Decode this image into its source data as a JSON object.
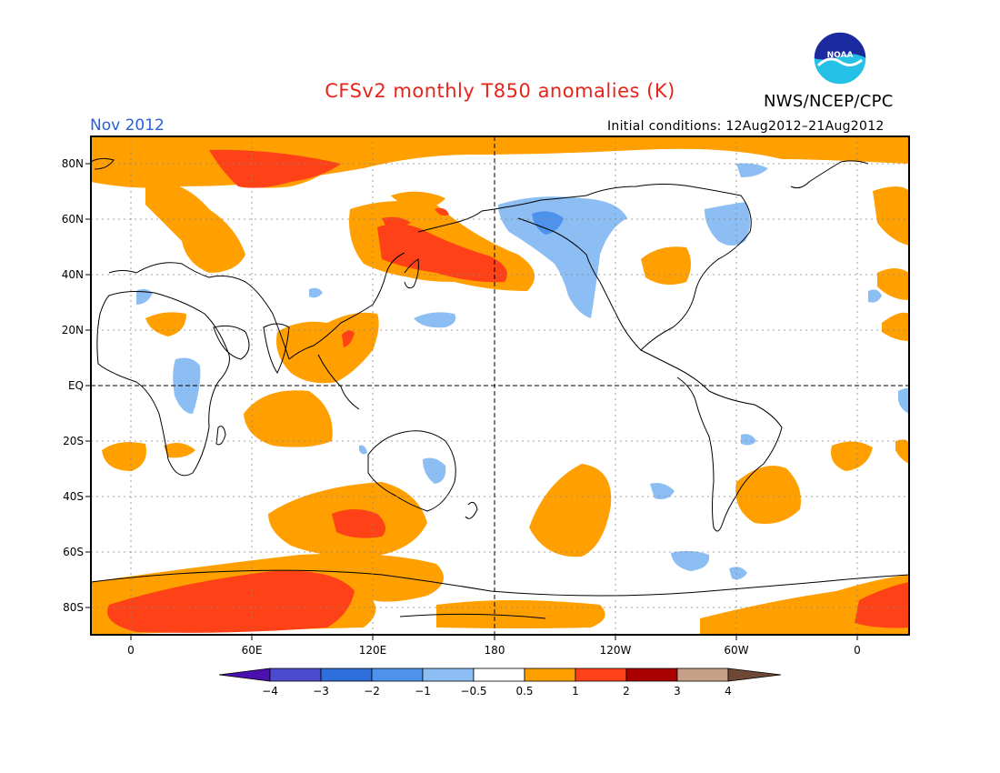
{
  "header": {
    "title": "CFSv2 monthly T850 anomalies (K)",
    "agency": "NWS/NCEP/CPC",
    "logo_text": "NOAA",
    "month": "Nov 2012",
    "initial_conditions": "Initial conditions: 12Aug2012–21Aug2012"
  },
  "axes": {
    "lat_labels": [
      "80N",
      "60N",
      "40N",
      "20N",
      "EQ",
      "20S",
      "40S",
      "60S",
      "80S"
    ],
    "lon_labels": [
      "0",
      "60E",
      "120E",
      "180",
      "120W",
      "60W",
      "0"
    ]
  },
  "colorbar": {
    "tick_labels": [
      "−4",
      "−3",
      "−2",
      "−1",
      "−0.5",
      "0.5",
      "1",
      "2",
      "3",
      "4"
    ],
    "colors": [
      "#4a10b0",
      "#4b4bd0",
      "#2f6fdc",
      "#4d92ec",
      "#8cbef4",
      "#ffffff",
      "#ff9f00",
      "#ff4118",
      "#aa0000",
      "#c7a089",
      "#6e4735"
    ]
  },
  "map": {
    "projection": "cylindrical equidistant",
    "lon_range": [
      -20,
      380
    ],
    "lat_range": [
      -90,
      90
    ],
    "background": "#ffffff",
    "colors": {
      "warm_1": "#ff9f00",
      "warm_2": "#ff4118",
      "cool_1": "#8cbef4",
      "cool_2": "#4d92ec",
      "land_outline": "#000000"
    }
  }
}
